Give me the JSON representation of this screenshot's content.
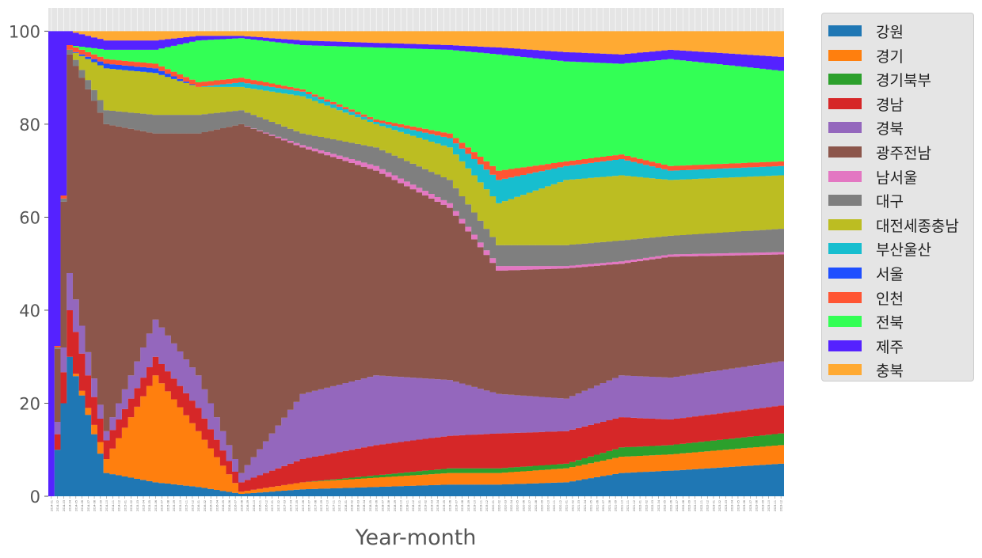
{
  "chart_data": {
    "type": "area",
    "stacked": true,
    "normalized_percent": true,
    "xlabel": "Year-month",
    "ylabel": "",
    "ylim": [
      0,
      100
    ],
    "yticks": [
      0,
      20,
      40,
      60,
      80,
      100
    ],
    "grid": true,
    "legend_position": "outside-right",
    "x_start": "2014-01",
    "x_end": "2023-12",
    "series": [
      {
        "name": "강원",
        "color": "#1f77b4"
      },
      {
        "name": "경기",
        "color": "#ff7f0e"
      },
      {
        "name": "경기북부",
        "color": "#2ca02c"
      },
      {
        "name": "경남",
        "color": "#d62728"
      },
      {
        "name": "경북",
        "color": "#9467bd"
      },
      {
        "name": "광주전남",
        "color": "#8c564b"
      },
      {
        "name": "남서울",
        "color": "#e377c2"
      },
      {
        "name": "대구",
        "color": "#7f7f7f"
      },
      {
        "name": "대전세종충남",
        "color": "#bcbd22"
      },
      {
        "name": "부산울산",
        "color": "#17becf"
      },
      {
        "name": "서울",
        "color": "#1f4fff"
      },
      {
        "name": "인천",
        "color": "#ff5533"
      },
      {
        "name": "전북",
        "color": "#33ff55"
      },
      {
        "name": "제주",
        "color": "#5522ff"
      },
      {
        "name": "충북",
        "color": "#ffaa33"
      }
    ],
    "cumulative_keyframes": [
      {
        "x": "2014-01",
        "tops": [
          0,
          0,
          0,
          0,
          0,
          0,
          0,
          0,
          0,
          0,
          0,
          0,
          0,
          100,
          100
        ]
      },
      {
        "x": "2014-04",
        "tops": [
          30,
          30,
          30,
          40,
          48,
          95,
          95,
          96,
          96,
          96,
          96,
          97,
          97,
          100,
          100
        ]
      },
      {
        "x": "2014-10",
        "tops": [
          5,
          8,
          8,
          12,
          14,
          80,
          80,
          83,
          92,
          92,
          93,
          94,
          96,
          98,
          100
        ]
      },
      {
        "x": "2015-06",
        "tops": [
          3,
          26,
          26,
          30,
          38,
          78,
          78,
          82,
          91,
          91,
          92,
          93,
          96,
          98,
          100
        ]
      },
      {
        "x": "2016-01",
        "tops": [
          2,
          14,
          14,
          19,
          26,
          78,
          78,
          82,
          88,
          88,
          88,
          89,
          98,
          99,
          100
        ]
      },
      {
        "x": "2016-08",
        "tops": [
          0.5,
          1,
          1,
          3,
          5,
          80,
          80,
          83,
          88,
          89,
          89,
          90,
          98.5,
          99,
          100
        ]
      },
      {
        "x": "2017-06",
        "tops": [
          1.5,
          3,
          3,
          8,
          22,
          75,
          75.5,
          78,
          86,
          87,
          87,
          87.5,
          97,
          98,
          100
        ]
      },
      {
        "x": "2018-06",
        "tops": [
          2,
          4,
          4.5,
          11,
          26,
          70,
          71,
          75,
          80,
          80.5,
          80.5,
          81,
          96.5,
          97.5,
          100
        ]
      },
      {
        "x": "2019-06",
        "tops": [
          2.5,
          5,
          6,
          13,
          25,
          62,
          63,
          68,
          75,
          77,
          77,
          78,
          96,
          97,
          100
        ]
      },
      {
        "x": "2020-02",
        "tops": [
          2.5,
          5,
          6,
          13.5,
          22,
          48.5,
          49.5,
          54,
          63,
          68,
          68,
          70,
          95,
          96.5,
          100
        ]
      },
      {
        "x": "2021-01",
        "tops": [
          3,
          6,
          7,
          14,
          21,
          49,
          49.5,
          54,
          68,
          71,
          71,
          72,
          93.5,
          95.5,
          100
        ]
      },
      {
        "x": "2021-10",
        "tops": [
          5,
          8.5,
          10.5,
          17,
          26,
          50,
          50.5,
          55,
          69,
          72.5,
          72.5,
          73.5,
          93,
          95,
          100
        ]
      },
      {
        "x": "2022-06",
        "tops": [
          5.5,
          9,
          11,
          16.5,
          25.5,
          51.5,
          52,
          56,
          68,
          70,
          70,
          71,
          94,
          96,
          100
        ]
      },
      {
        "x": "2023-12",
        "tops": [
          7,
          11,
          13.5,
          19.5,
          29,
          52,
          52.5,
          57.5,
          69,
          71,
          71,
          72,
          91.5,
          94.5,
          100
        ]
      }
    ]
  }
}
